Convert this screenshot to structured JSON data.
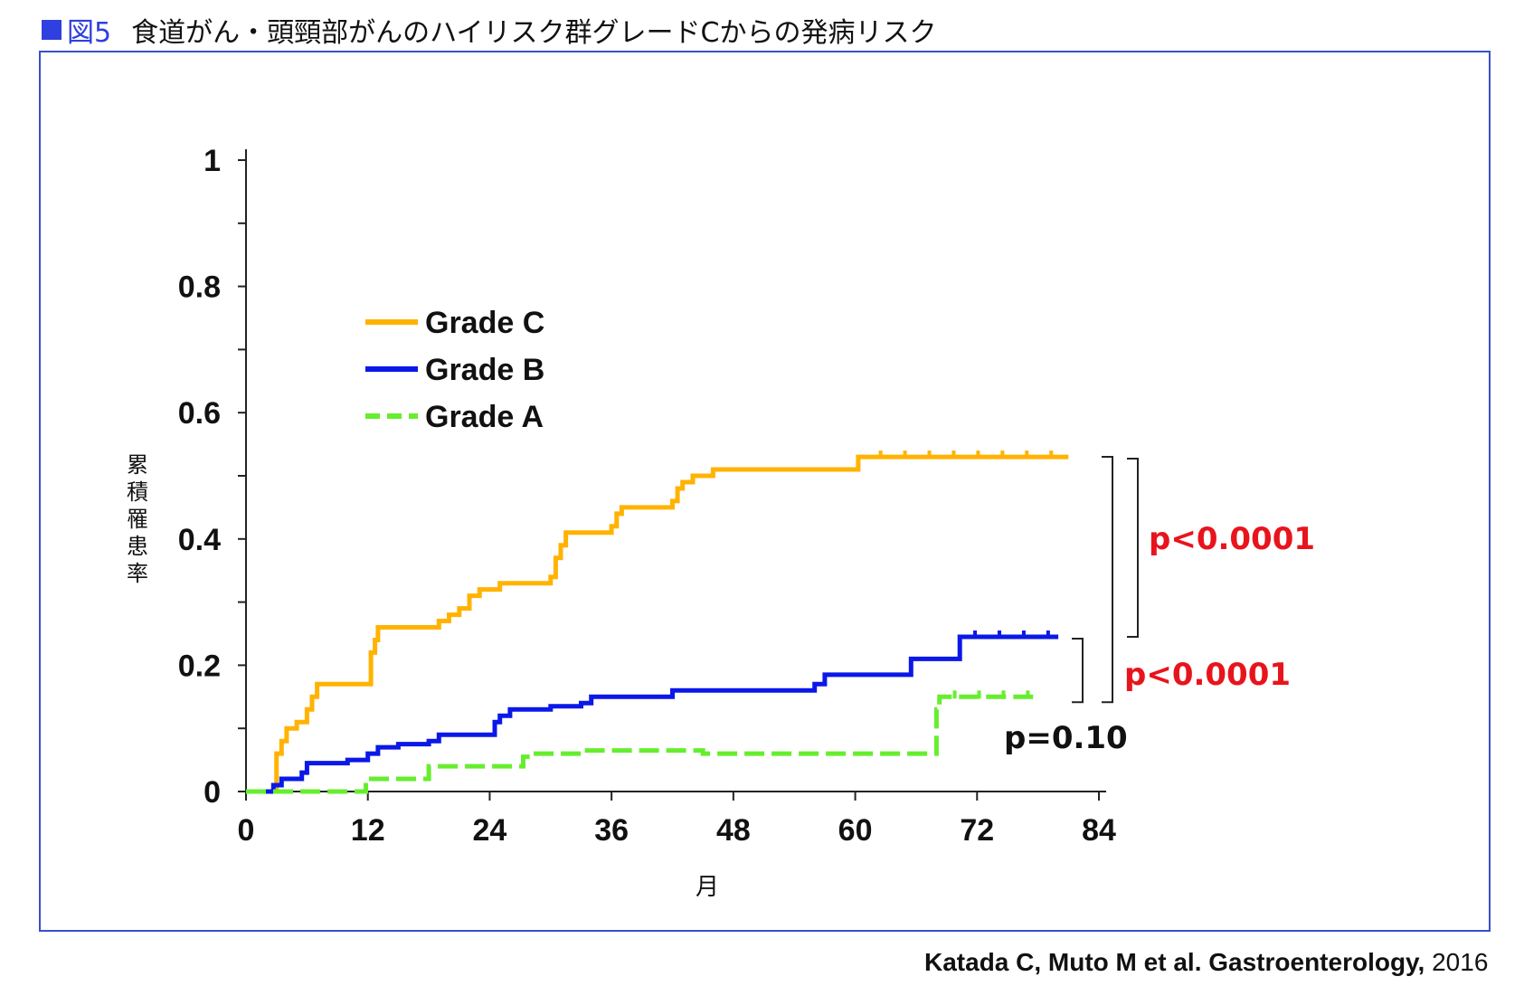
{
  "figure": {
    "number": "図5",
    "title": "食道がん・頭頸部がんのハイリスク群グレードCからの発病リスク",
    "accent_color": "#2f3fe0",
    "frame_color": "#3a4fc8"
  },
  "citation": {
    "bold": "Katada C, Muto M et al. Gastroenterology,",
    "year": "2016"
  },
  "chart_data": {
    "type": "line",
    "step": true,
    "xlabel": "月",
    "ylabel": "累積罹患率",
    "xlim": [
      0,
      84
    ],
    "ylim": [
      0,
      1
    ],
    "xticks": [
      "0",
      "12",
      "24",
      "36",
      "48",
      "60",
      "72",
      "84"
    ],
    "xtick_values": [
      0,
      12,
      24,
      36,
      48,
      60,
      72,
      84
    ],
    "yticks": [
      "0",
      "0.2",
      "0.4",
      "0.6",
      "0.8",
      "1"
    ],
    "ytick_values": [
      0,
      0.2,
      0.4,
      0.6,
      0.8,
      1
    ],
    "grid": false,
    "legend_position": "upper-left",
    "series": [
      {
        "name": "Grade C",
        "color": "#ffb300",
        "dash": "solid",
        "x": [
          0,
          2.7,
          3,
          3.5,
          4,
          5,
          6,
          6.5,
          7,
          12,
          12.3,
          12.7,
          13,
          18,
          19,
          20,
          21,
          22,
          23,
          25,
          26,
          28,
          30,
          30.5,
          31,
          31.5,
          32,
          36,
          36.5,
          37,
          38,
          42,
          42.5,
          43,
          44,
          46,
          60,
          60.3,
          61,
          81
        ],
        "y": [
          0,
          0,
          0.06,
          0.08,
          0.1,
          0.11,
          0.13,
          0.15,
          0.17,
          0.17,
          0.22,
          0.24,
          0.26,
          0.26,
          0.27,
          0.28,
          0.29,
          0.31,
          0.32,
          0.33,
          0.33,
          0.33,
          0.34,
          0.37,
          0.39,
          0.41,
          0.41,
          0.42,
          0.44,
          0.45,
          0.45,
          0.46,
          0.48,
          0.49,
          0.5,
          0.51,
          0.51,
          0.53,
          0.53,
          0.53
        ]
      },
      {
        "name": "Grade B",
        "color": "#0a18e8",
        "dash": "solid",
        "x": [
          0,
          2.2,
          2.7,
          3.5,
          5.5,
          6,
          7,
          10,
          12,
          13,
          14,
          15,
          18,
          19,
          24,
          24.5,
          25,
          26,
          28,
          30,
          33,
          34,
          36,
          41,
          42,
          45,
          55,
          56,
          57,
          65,
          65.5,
          70,
          70.3,
          80
        ],
        "y": [
          0,
          0,
          0.01,
          0.02,
          0.03,
          0.045,
          0.045,
          0.05,
          0.06,
          0.07,
          0.07,
          0.075,
          0.08,
          0.09,
          0.09,
          0.11,
          0.12,
          0.13,
          0.13,
          0.135,
          0.14,
          0.15,
          0.15,
          0.15,
          0.16,
          0.16,
          0.16,
          0.17,
          0.185,
          0.185,
          0.21,
          0.21,
          0.245,
          0.245
        ]
      },
      {
        "name": "Grade A",
        "color": "#66ee2e",
        "dash": "dashed",
        "x": [
          0,
          11.5,
          11.8,
          17.5,
          18,
          24,
          27,
          27.3,
          28,
          33,
          45,
          67.5,
          68,
          68.3,
          78
        ],
        "y": [
          0,
          0,
          0.02,
          0.02,
          0.04,
          0.04,
          0.04,
          0.055,
          0.06,
          0.065,
          0.06,
          0.06,
          0.13,
          0.15,
          0.15
        ]
      }
    ],
    "annotations": [
      {
        "text": "p<0.0001",
        "color": "#e8141c",
        "compares": [
          "Grade C",
          "Grade B"
        ]
      },
      {
        "text": "p<0.0001",
        "color": "#e8141c",
        "compares": [
          "Grade C",
          "Grade A"
        ]
      },
      {
        "text": "p=0.10",
        "color": "#111111",
        "compares": [
          "Grade B",
          "Grade A"
        ]
      }
    ]
  }
}
